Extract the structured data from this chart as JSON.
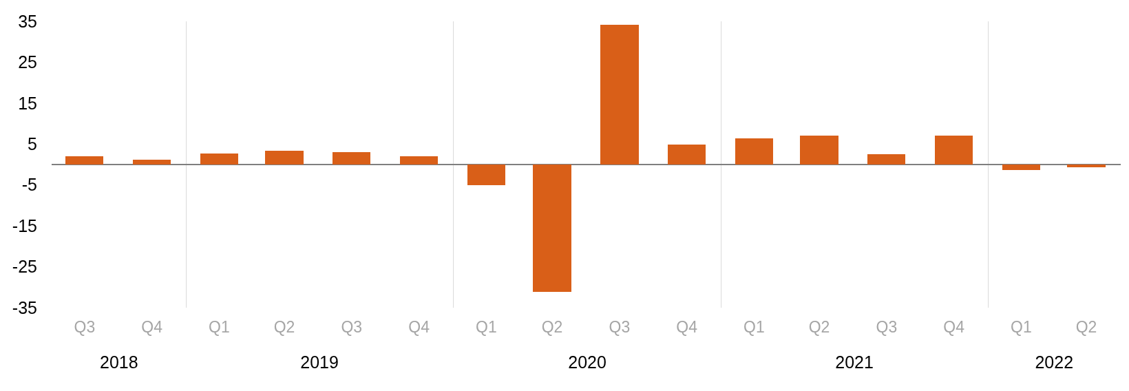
{
  "chart_data": {
    "type": "bar",
    "x": [
      "2018-08-15",
      "2018-11-15",
      "2019-02-15",
      "2019-05-15",
      "2019-08-15",
      "2019-11-15",
      "2020-02-15",
      "2020-05-15",
      "2020-08-15",
      "2020-11-15",
      "2021-02-15",
      "2021-05-15",
      "2021-08-15",
      "2021-11-15",
      "2022-02-15",
      "2022-05-15"
    ],
    "values": [
      2.0,
      1.1,
      2.7,
      3.3,
      3.1,
      2.0,
      -5.0,
      -31.1,
      34.1,
      4.8,
      6.4,
      7.0,
      2.6,
      7.1,
      -1.4,
      -0.6
    ],
    "color": "#d95f18",
    "ylim": [
      -35,
      35
    ],
    "yticks": [
      -35,
      -25,
      -15,
      -5,
      5,
      15,
      25,
      35
    ],
    "xlim": [
      "2018-07-01",
      "2022-07-01"
    ],
    "xticks": [
      {
        "value": "2018-08-15",
        "label": "Q3"
      },
      {
        "value": "2018-11-15",
        "label": "Q4"
      },
      {
        "value": "2019-02-15",
        "label": "Q1"
      },
      {
        "value": "2019-05-15",
        "label": "Q2"
      },
      {
        "value": "2019-08-15",
        "label": "Q3"
      },
      {
        "value": "2019-11-15",
        "label": "Q4"
      },
      {
        "value": "2020-02-15",
        "label": "Q1"
      },
      {
        "value": "2020-05-15",
        "label": "Q2"
      },
      {
        "value": "2020-08-15",
        "label": "Q3"
      },
      {
        "value": "2020-11-15",
        "label": "Q4"
      },
      {
        "value": "2021-02-15",
        "label": "Q1"
      },
      {
        "value": "2021-05-15",
        "label": "Q2"
      },
      {
        "value": "2021-08-15",
        "label": "Q3"
      },
      {
        "value": "2021-11-15",
        "label": "Q4"
      },
      {
        "value": "2022-02-15",
        "label": "Q1"
      },
      {
        "value": "2022-05-15",
        "label": "Q2"
      }
    ],
    "x2lim": [
      "2018-07-01",
      "2022-07-01"
    ],
    "x2ticks": [
      {
        "value": "2018-10-01",
        "label": "2018"
      },
      {
        "value": "2019-07-02",
        "label": "2019"
      },
      {
        "value": "2020-07-02",
        "label": "2020"
      },
      {
        "value": "2021-07-02",
        "label": "2021"
      },
      {
        "value": "2022-04-01",
        "label": "2022"
      }
    ],
    "ref_lines": [
      {
        "axis": "x",
        "value": "2019-01-01",
        "color": "#d9d9d9"
      },
      {
        "axis": "x",
        "value": "2020-01-01",
        "color": "#d9d9d9"
      },
      {
        "axis": "x",
        "value": "2021-01-01",
        "color": "#d9d9d9"
      },
      {
        "axis": "x",
        "value": "2022-01-01",
        "color": "#d9d9d9"
      }
    ],
    "grid": false,
    "legend": false
  }
}
